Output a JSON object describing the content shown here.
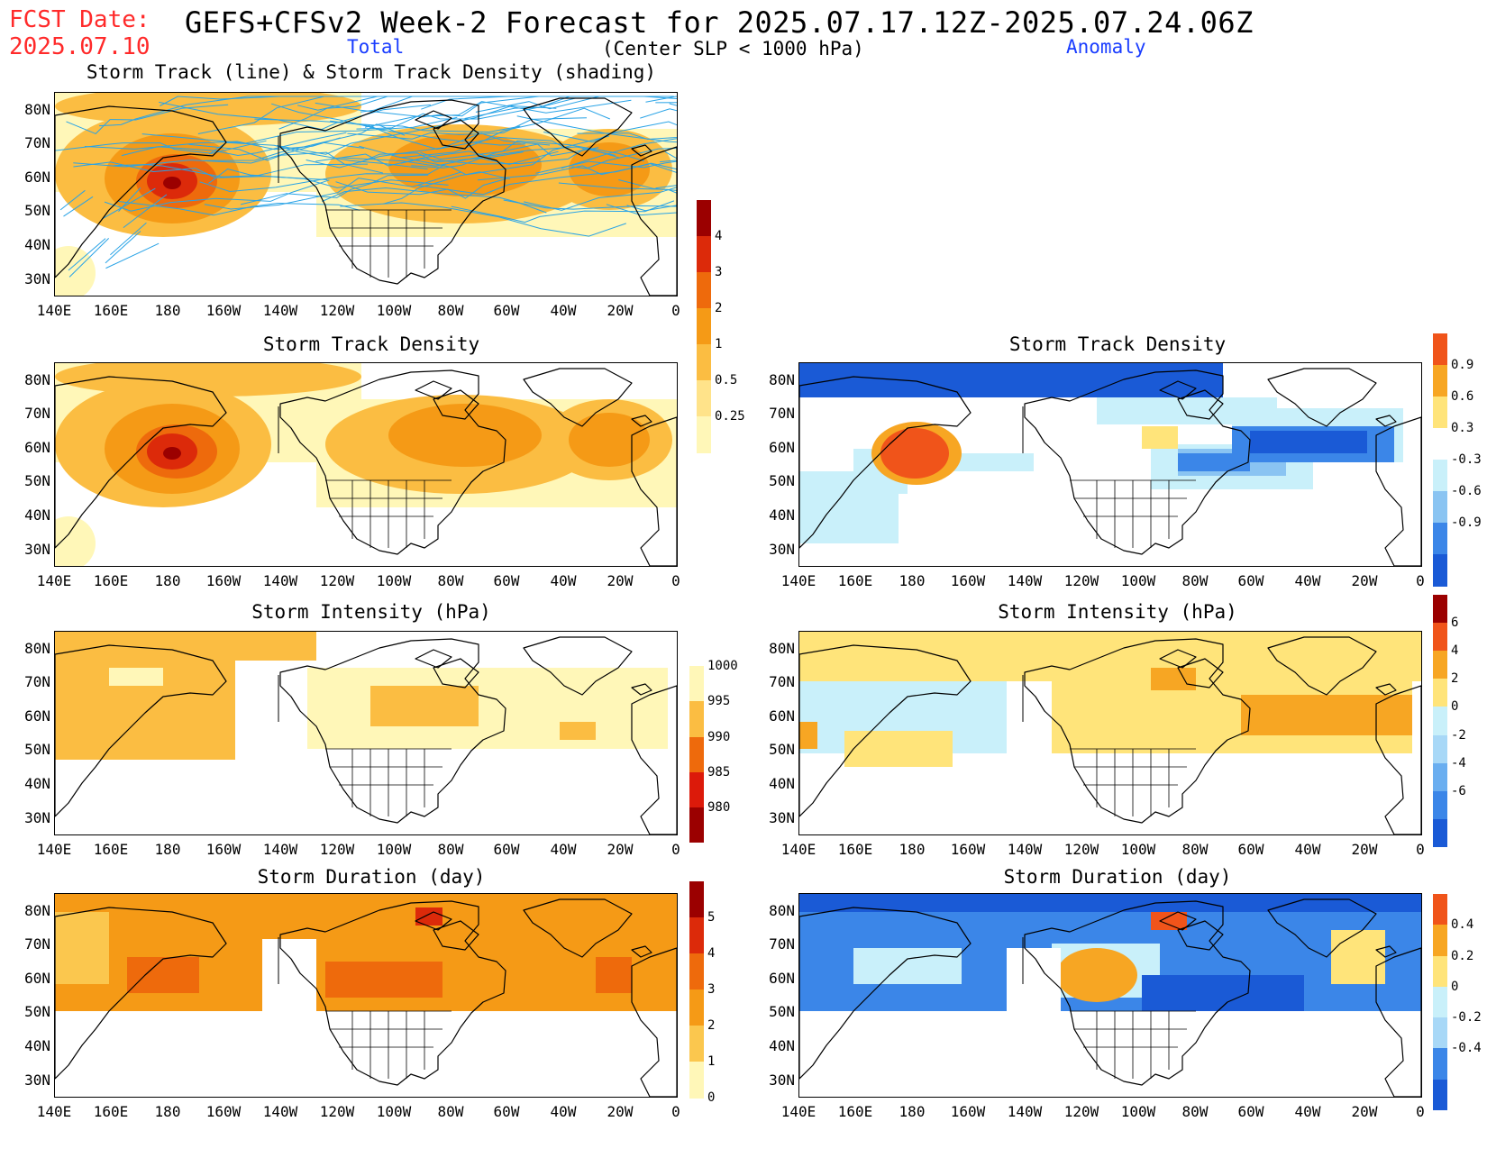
{
  "header": {
    "fcst_label": "FCST Date:",
    "fcst_date": "2025.07.10",
    "title": "GEFS+CFSv2 Week-2 Forecast for 2025.07.17.12Z-2025.07.24.06Z",
    "subtitle": "(Center SLP < 1000 hPa)",
    "col_total": "Total",
    "col_anomaly": "Anomaly"
  },
  "axes": {
    "lat_labels": [
      "80N",
      "70N",
      "60N",
      "50N",
      "40N",
      "30N"
    ],
    "lon_labels": [
      "140E",
      "160E",
      "180",
      "160W",
      "140W",
      "120W",
      "100W",
      "80W",
      "60W",
      "40W",
      "20W",
      "0"
    ]
  },
  "panels": {
    "track_total_title": "Storm Track (line) & Storm Track Density (shading)",
    "density_total_title": "Storm Track Density",
    "density_anom_title": "Storm Track Density",
    "intensity_total_title": "Storm Intensity (hPa)",
    "intensity_anom_title": "Storm Intensity (hPa)",
    "duration_total_title": "Storm Duration (day)",
    "duration_anom_title": "Storm Duration (day)"
  },
  "colorbars": {
    "density_total": {
      "labels": [
        "0.25",
        "0.5",
        "1",
        "2",
        "3",
        "4"
      ],
      "colors": [
        "#fff7b8",
        "#ffe38a",
        "#fbbd42",
        "#f59a16",
        "#ee6a0c",
        "#dc2a0a",
        "#9b0000"
      ]
    },
    "density_anom": {
      "labels": [
        "-0.9",
        "-0.6",
        "-0.3",
        "0.3",
        "0.6",
        "0.9"
      ],
      "colors": [
        "#1a5ad6",
        "#3b86e8",
        "#8ac4f2",
        "#c9f0fa",
        "#ffffff",
        "#ffe47a",
        "#f7a623",
        "#f0541a"
      ]
    },
    "intensity_total": {
      "labels": [
        "1000",
        "995",
        "990",
        "985",
        "980"
      ],
      "colors": [
        "#ffffff",
        "#fff7b8",
        "#fbbd42",
        "#ee6a0c",
        "#dc1a0a",
        "#9b0000"
      ]
    },
    "intensity_anom": {
      "labels": [
        "-6",
        "-4",
        "-2",
        "0",
        "2",
        "4",
        "6"
      ],
      "colors": [
        "#1a5ad6",
        "#3b86e8",
        "#6aaef0",
        "#a8d8f7",
        "#c9f0fa",
        "#ffe47a",
        "#f7a623",
        "#f0541a",
        "#9b0000"
      ]
    },
    "duration_total": {
      "labels": [
        "0",
        "1",
        "2",
        "3",
        "4",
        "5"
      ],
      "colors": [
        "#fff7b8",
        "#fbc74e",
        "#f59a16",
        "#ee6a0c",
        "#dc2a0a",
        "#9b0000"
      ]
    },
    "duration_anom": {
      "labels": [
        "-0.4",
        "-0.2",
        "0",
        "0.2",
        "0.4"
      ],
      "colors": [
        "#1a5ad6",
        "#3b86e8",
        "#a8d8f7",
        "#c9f0fa",
        "#ffe47a",
        "#f7a623",
        "#f0541a"
      ]
    }
  }
}
